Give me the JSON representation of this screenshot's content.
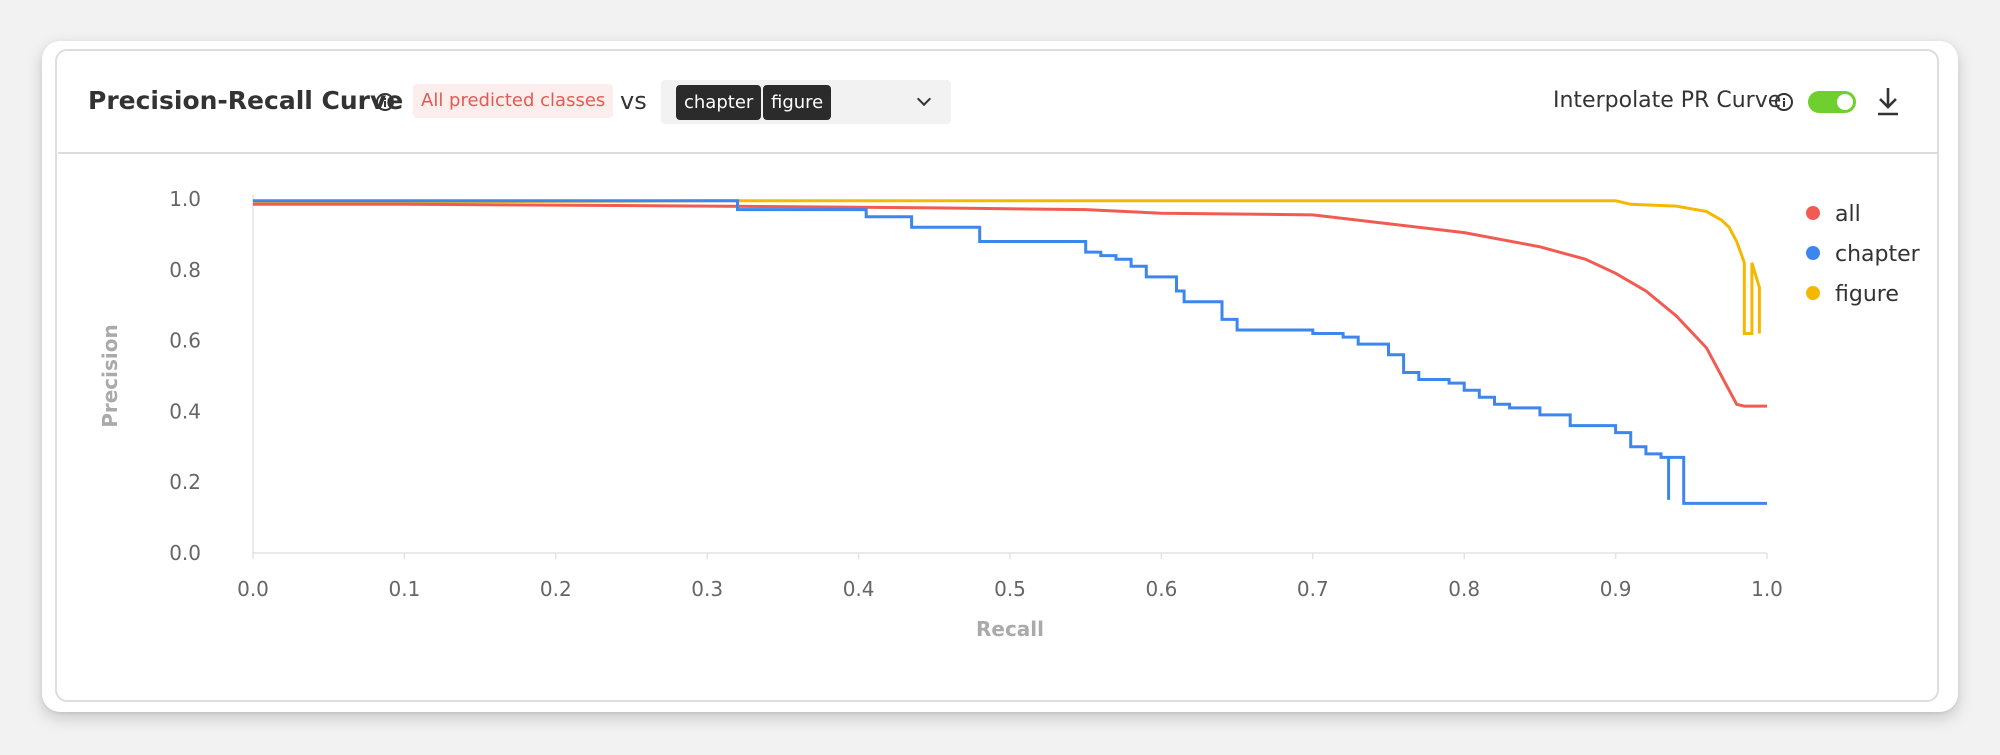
{
  "header": {
    "title": "Precision-Recall Curve",
    "predicted_badge": "All predicted classes",
    "vs_label": "vs",
    "selected_chips": [
      "chapter",
      "figure"
    ],
    "interpolate_label": "Interpolate PR Curve",
    "interpolate_enabled": true
  },
  "colors": {
    "all": "#f15b52",
    "chapter": "#3d86ee",
    "figure": "#f5b800",
    "toggle_on": "#6fcf2f"
  },
  "icons": [
    "info-icon",
    "chevron-down-icon",
    "download-icon"
  ],
  "chart_data": {
    "type": "line",
    "title": "",
    "xlabel": "Recall",
    "ylabel": "Precision",
    "xlim": [
      0,
      1
    ],
    "ylim": [
      0,
      1
    ],
    "x_ticks": [
      "0.0",
      "0.1",
      "0.2",
      "0.3",
      "0.4",
      "0.5",
      "0.6",
      "0.7",
      "0.8",
      "0.9",
      "1.0"
    ],
    "y_ticks": [
      "0.0",
      "0.2",
      "0.4",
      "0.6",
      "0.8",
      "1.0"
    ],
    "grid": false,
    "legend_position": "right",
    "series": [
      {
        "name": "all",
        "color": "#f15b52",
        "points": [
          [
            0.0,
            0.985
          ],
          [
            0.1,
            0.985
          ],
          [
            0.3,
            0.98
          ],
          [
            0.45,
            0.975
          ],
          [
            0.55,
            0.97
          ],
          [
            0.6,
            0.96
          ],
          [
            0.7,
            0.955
          ],
          [
            0.75,
            0.93
          ],
          [
            0.8,
            0.905
          ],
          [
            0.85,
            0.865
          ],
          [
            0.88,
            0.83
          ],
          [
            0.9,
            0.79
          ],
          [
            0.92,
            0.74
          ],
          [
            0.94,
            0.67
          ],
          [
            0.96,
            0.58
          ],
          [
            0.975,
            0.46
          ],
          [
            0.98,
            0.42
          ],
          [
            0.985,
            0.415
          ],
          [
            1.0,
            0.415
          ]
        ]
      },
      {
        "name": "chapter",
        "color": "#3d86ee",
        "points": [
          [
            0.0,
            0.995
          ],
          [
            0.32,
            0.995
          ],
          [
            0.32,
            0.97
          ],
          [
            0.405,
            0.97
          ],
          [
            0.405,
            0.95
          ],
          [
            0.435,
            0.95
          ],
          [
            0.435,
            0.92
          ],
          [
            0.48,
            0.92
          ],
          [
            0.48,
            0.88
          ],
          [
            0.55,
            0.88
          ],
          [
            0.55,
            0.85
          ],
          [
            0.56,
            0.85
          ],
          [
            0.56,
            0.84
          ],
          [
            0.57,
            0.84
          ],
          [
            0.57,
            0.83
          ],
          [
            0.58,
            0.83
          ],
          [
            0.58,
            0.81
          ],
          [
            0.59,
            0.81
          ],
          [
            0.59,
            0.78
          ],
          [
            0.61,
            0.78
          ],
          [
            0.61,
            0.74
          ],
          [
            0.615,
            0.74
          ],
          [
            0.615,
            0.71
          ],
          [
            0.64,
            0.71
          ],
          [
            0.64,
            0.66
          ],
          [
            0.65,
            0.66
          ],
          [
            0.65,
            0.63
          ],
          [
            0.7,
            0.63
          ],
          [
            0.7,
            0.62
          ],
          [
            0.72,
            0.62
          ],
          [
            0.72,
            0.61
          ],
          [
            0.73,
            0.61
          ],
          [
            0.73,
            0.59
          ],
          [
            0.75,
            0.59
          ],
          [
            0.75,
            0.56
          ],
          [
            0.76,
            0.56
          ],
          [
            0.76,
            0.51
          ],
          [
            0.77,
            0.51
          ],
          [
            0.77,
            0.49
          ],
          [
            0.79,
            0.49
          ],
          [
            0.79,
            0.48
          ],
          [
            0.8,
            0.48
          ],
          [
            0.8,
            0.46
          ],
          [
            0.81,
            0.46
          ],
          [
            0.81,
            0.44
          ],
          [
            0.82,
            0.44
          ],
          [
            0.82,
            0.42
          ],
          [
            0.83,
            0.42
          ],
          [
            0.83,
            0.41
          ],
          [
            0.85,
            0.41
          ],
          [
            0.85,
            0.39
          ],
          [
            0.87,
            0.39
          ],
          [
            0.87,
            0.36
          ],
          [
            0.9,
            0.36
          ],
          [
            0.9,
            0.34
          ],
          [
            0.91,
            0.34
          ],
          [
            0.91,
            0.3
          ],
          [
            0.92,
            0.3
          ],
          [
            0.92,
            0.28
          ],
          [
            0.93,
            0.28
          ],
          [
            0.93,
            0.27
          ],
          [
            0.935,
            0.27
          ],
          [
            0.935,
            0.15
          ],
          [
            0.935,
            0.27
          ],
          [
            0.945,
            0.27
          ],
          [
            0.945,
            0.14
          ],
          [
            1.0,
            0.14
          ]
        ]
      },
      {
        "name": "figure",
        "color": "#f5b800",
        "points": [
          [
            0.0,
            0.99
          ],
          [
            0.3,
            0.995
          ],
          [
            0.9,
            0.995
          ],
          [
            0.91,
            0.985
          ],
          [
            0.94,
            0.98
          ],
          [
            0.96,
            0.965
          ],
          [
            0.97,
            0.94
          ],
          [
            0.975,
            0.92
          ],
          [
            0.98,
            0.88
          ],
          [
            0.985,
            0.82
          ],
          [
            0.985,
            0.62
          ],
          [
            0.99,
            0.62
          ],
          [
            0.99,
            0.82
          ],
          [
            0.995,
            0.75
          ],
          [
            0.995,
            0.62
          ]
        ]
      }
    ]
  }
}
